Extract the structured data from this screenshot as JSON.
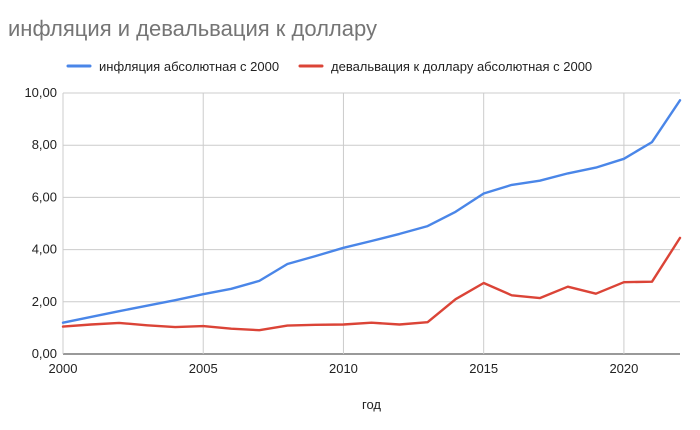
{
  "chart_data": {
    "type": "line",
    "title": "инфляция и девальвация к доллару",
    "xlabel": "год",
    "ylabel": "",
    "xlim": [
      2000,
      2022
    ],
    "ylim": [
      0,
      10
    ],
    "x_ticks": [
      "2000",
      "2005",
      "2010",
      "2015",
      "2020"
    ],
    "y_ticks": [
      "0,00",
      "2,00",
      "4,00",
      "6,00",
      "8,00",
      "10,00"
    ],
    "grid": true,
    "legend_position": "top",
    "x": [
      2000,
      2001,
      2002,
      2003,
      2004,
      2005,
      2006,
      2007,
      2008,
      2009,
      2010,
      2011,
      2012,
      2013,
      2014,
      2015,
      2016,
      2017,
      2018,
      2019,
      2020,
      2021,
      2022
    ],
    "series": [
      {
        "name": "инфляция абсолютная с 2000",
        "color": "#4a86e8",
        "values": [
          1.2,
          1.42,
          1.64,
          1.85,
          2.06,
          2.29,
          2.5,
          2.8,
          3.45,
          3.75,
          4.07,
          4.33,
          4.6,
          4.9,
          5.45,
          6.15,
          6.48,
          6.64,
          6.92,
          7.14,
          7.48,
          8.12,
          9.72
        ]
      },
      {
        "name": "девальвация к доллару абсолютная с 2000",
        "color": "#db4437",
        "values": [
          1.05,
          1.13,
          1.19,
          1.1,
          1.03,
          1.07,
          0.97,
          0.91,
          1.09,
          1.12,
          1.13,
          1.2,
          1.13,
          1.22,
          2.1,
          2.72,
          2.25,
          2.14,
          2.58,
          2.31,
          2.75,
          2.77,
          4.45
        ]
      }
    ]
  }
}
